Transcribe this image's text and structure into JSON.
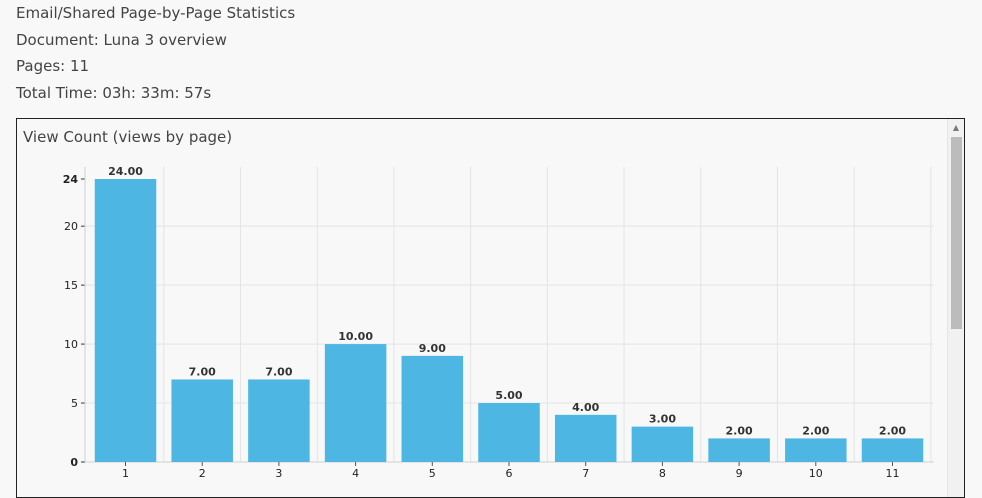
{
  "header": {
    "title": "Email/Shared Page-by-Page Statistics",
    "document": "Document: Luna 3 overview",
    "pages": "Pages: 11",
    "total_time": "Total Time: 03h: 33m: 57s"
  },
  "panel": {
    "title": "View Count (views by page)"
  },
  "chart_data": {
    "type": "bar",
    "title": "View Count (views by page)",
    "categories": [
      "1",
      "2",
      "3",
      "4",
      "5",
      "6",
      "7",
      "8",
      "9",
      "10",
      "11"
    ],
    "values": [
      24,
      7,
      7,
      10,
      9,
      5,
      4,
      3,
      2,
      2,
      2
    ],
    "data_labels": [
      "24.00",
      "7.00",
      "7.00",
      "10.00",
      "9.00",
      "5.00",
      "4.00",
      "3.00",
      "2.00",
      "2.00",
      "2.00"
    ],
    "y_ticks": [
      0,
      5,
      10,
      15,
      20,
      24
    ],
    "ylim": [
      0,
      24
    ],
    "grid": true,
    "bar_color": "#4db6e2"
  }
}
